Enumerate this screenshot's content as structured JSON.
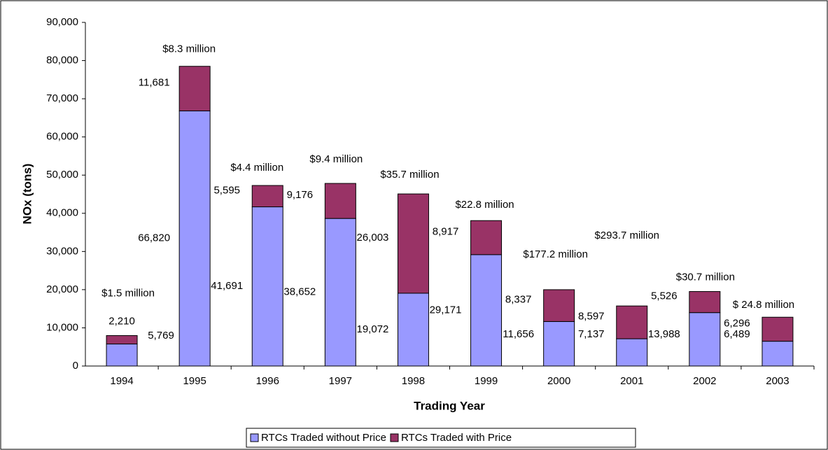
{
  "chart_data": {
    "type": "stacked_bar",
    "xlabel": "Trading Year",
    "ylabel": "NOx (tons)",
    "categories": [
      "1994",
      "1995",
      "1996",
      "1997",
      "1998",
      "1999",
      "2000",
      "2001",
      "2002",
      "2003"
    ],
    "series": [
      {
        "name": "RTCs Traded without Price",
        "color": "#9999ff",
        "values": [
          5769,
          66820,
          41691,
          38652,
          19072,
          29171,
          11656,
          7137,
          13988,
          6489
        ],
        "value_labels": [
          "5,769",
          "66,820",
          "41,691",
          "38,652",
          "19,072",
          "29,171",
          "11,656",
          "7,137",
          "13,988",
          "6,489"
        ]
      },
      {
        "name": "RTCs Traded with Price",
        "color": "#993366",
        "values": [
          2210,
          11681,
          5595,
          9176,
          26003,
          8917,
          8337,
          8597,
          5526,
          6296
        ],
        "value_labels": [
          "2,210",
          "11,681",
          "5,595",
          "9,176",
          "26,003",
          "8,917",
          "8,337",
          "8,597",
          "5,526",
          "6,296"
        ]
      }
    ],
    "annotations": [
      "$1.5 million",
      "$8.3 million",
      "$4.4 million",
      "$9.4 million",
      "$35.7 million",
      "$22.8 million",
      "$177.2 million",
      "$293.7 million",
      "$30.7 million",
      "$ 24.8 million"
    ],
    "ylim": [
      0,
      90000
    ],
    "yticks": [
      0,
      {
        "value": 10000,
        "label": "10,000"
      },
      {
        "value": 20000,
        "label": "20,000"
      },
      {
        "value": 30000,
        "label": "30,000"
      },
      {
        "value": 40000,
        "label": "40,000"
      },
      {
        "value": 50000,
        "label": "50,000"
      },
      {
        "value": 60000,
        "label": "60,000"
      },
      {
        "value": 70000,
        "label": "70,000"
      },
      {
        "value": 80000,
        "label": "80,000"
      },
      {
        "value": 90000,
        "label": "90,000"
      }
    ],
    "legend": "bottom"
  }
}
